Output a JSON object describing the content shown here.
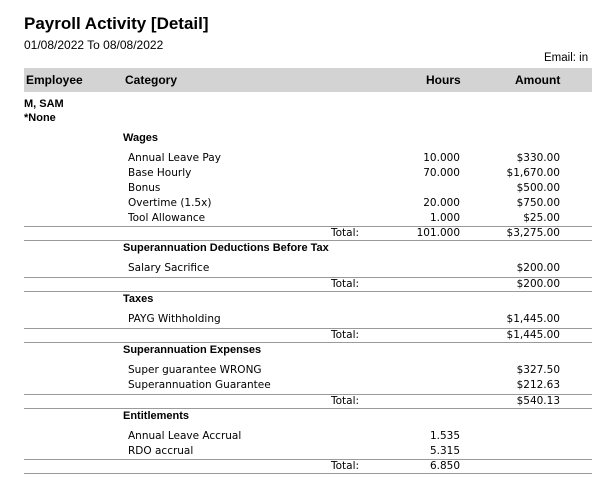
{
  "report": {
    "title": "Payroll Activity [Detail]",
    "date_range": "01/08/2022 To 08/08/2022",
    "email_label": "Email: in"
  },
  "columns": {
    "employee": "Employee",
    "category": "Category",
    "hours": "Hours",
    "amount": "Amount"
  },
  "employee": {
    "name": "M, SAM",
    "sub": "*None"
  },
  "sections": [
    {
      "title": "Wages",
      "rows": [
        {
          "label": "Annual Leave Pay",
          "hours": "10.000",
          "amount": "$330.00"
        },
        {
          "label": "Base Hourly",
          "hours": "70.000",
          "amount": "$1,670.00"
        },
        {
          "label": "Bonus",
          "hours": "",
          "amount": "$500.00"
        },
        {
          "label": "Overtime (1.5x)",
          "hours": "20.000",
          "amount": "$750.00"
        },
        {
          "label": "Tool Allowance",
          "hours": "1.000",
          "amount": "$25.00"
        }
      ],
      "total": {
        "label": "Total:",
        "hours": "101.000",
        "amount": "$3,275.00"
      }
    },
    {
      "title": "Superannuation Deductions Before Tax",
      "rows": [
        {
          "label": "Salary Sacrifice",
          "hours": "",
          "amount": "$200.00"
        }
      ],
      "total": {
        "label": "Total:",
        "hours": "",
        "amount": "$200.00"
      }
    },
    {
      "title": "Taxes",
      "rows": [
        {
          "label": "PAYG Withholding",
          "hours": "",
          "amount": "$1,445.00"
        }
      ],
      "total": {
        "label": "Total:",
        "hours": "",
        "amount": "$1,445.00"
      }
    },
    {
      "title": "Superannuation Expenses",
      "rows": [
        {
          "label": "Super guarantee WRONG",
          "hours": "",
          "amount": "$327.50"
        },
        {
          "label": "Superannuation Guarantee",
          "hours": "",
          "amount": "$212.63"
        }
      ],
      "total": {
        "label": "Total:",
        "hours": "",
        "amount": "$540.13"
      }
    },
    {
      "title": "Entitlements",
      "rows": [
        {
          "label": "Annual Leave Accrual",
          "hours": "1.535",
          "amount": ""
        },
        {
          "label": "RDO accrual",
          "hours": "5.315",
          "amount": ""
        }
      ],
      "total": {
        "label": "Total:",
        "hours": "6.850",
        "amount": ""
      }
    }
  ]
}
